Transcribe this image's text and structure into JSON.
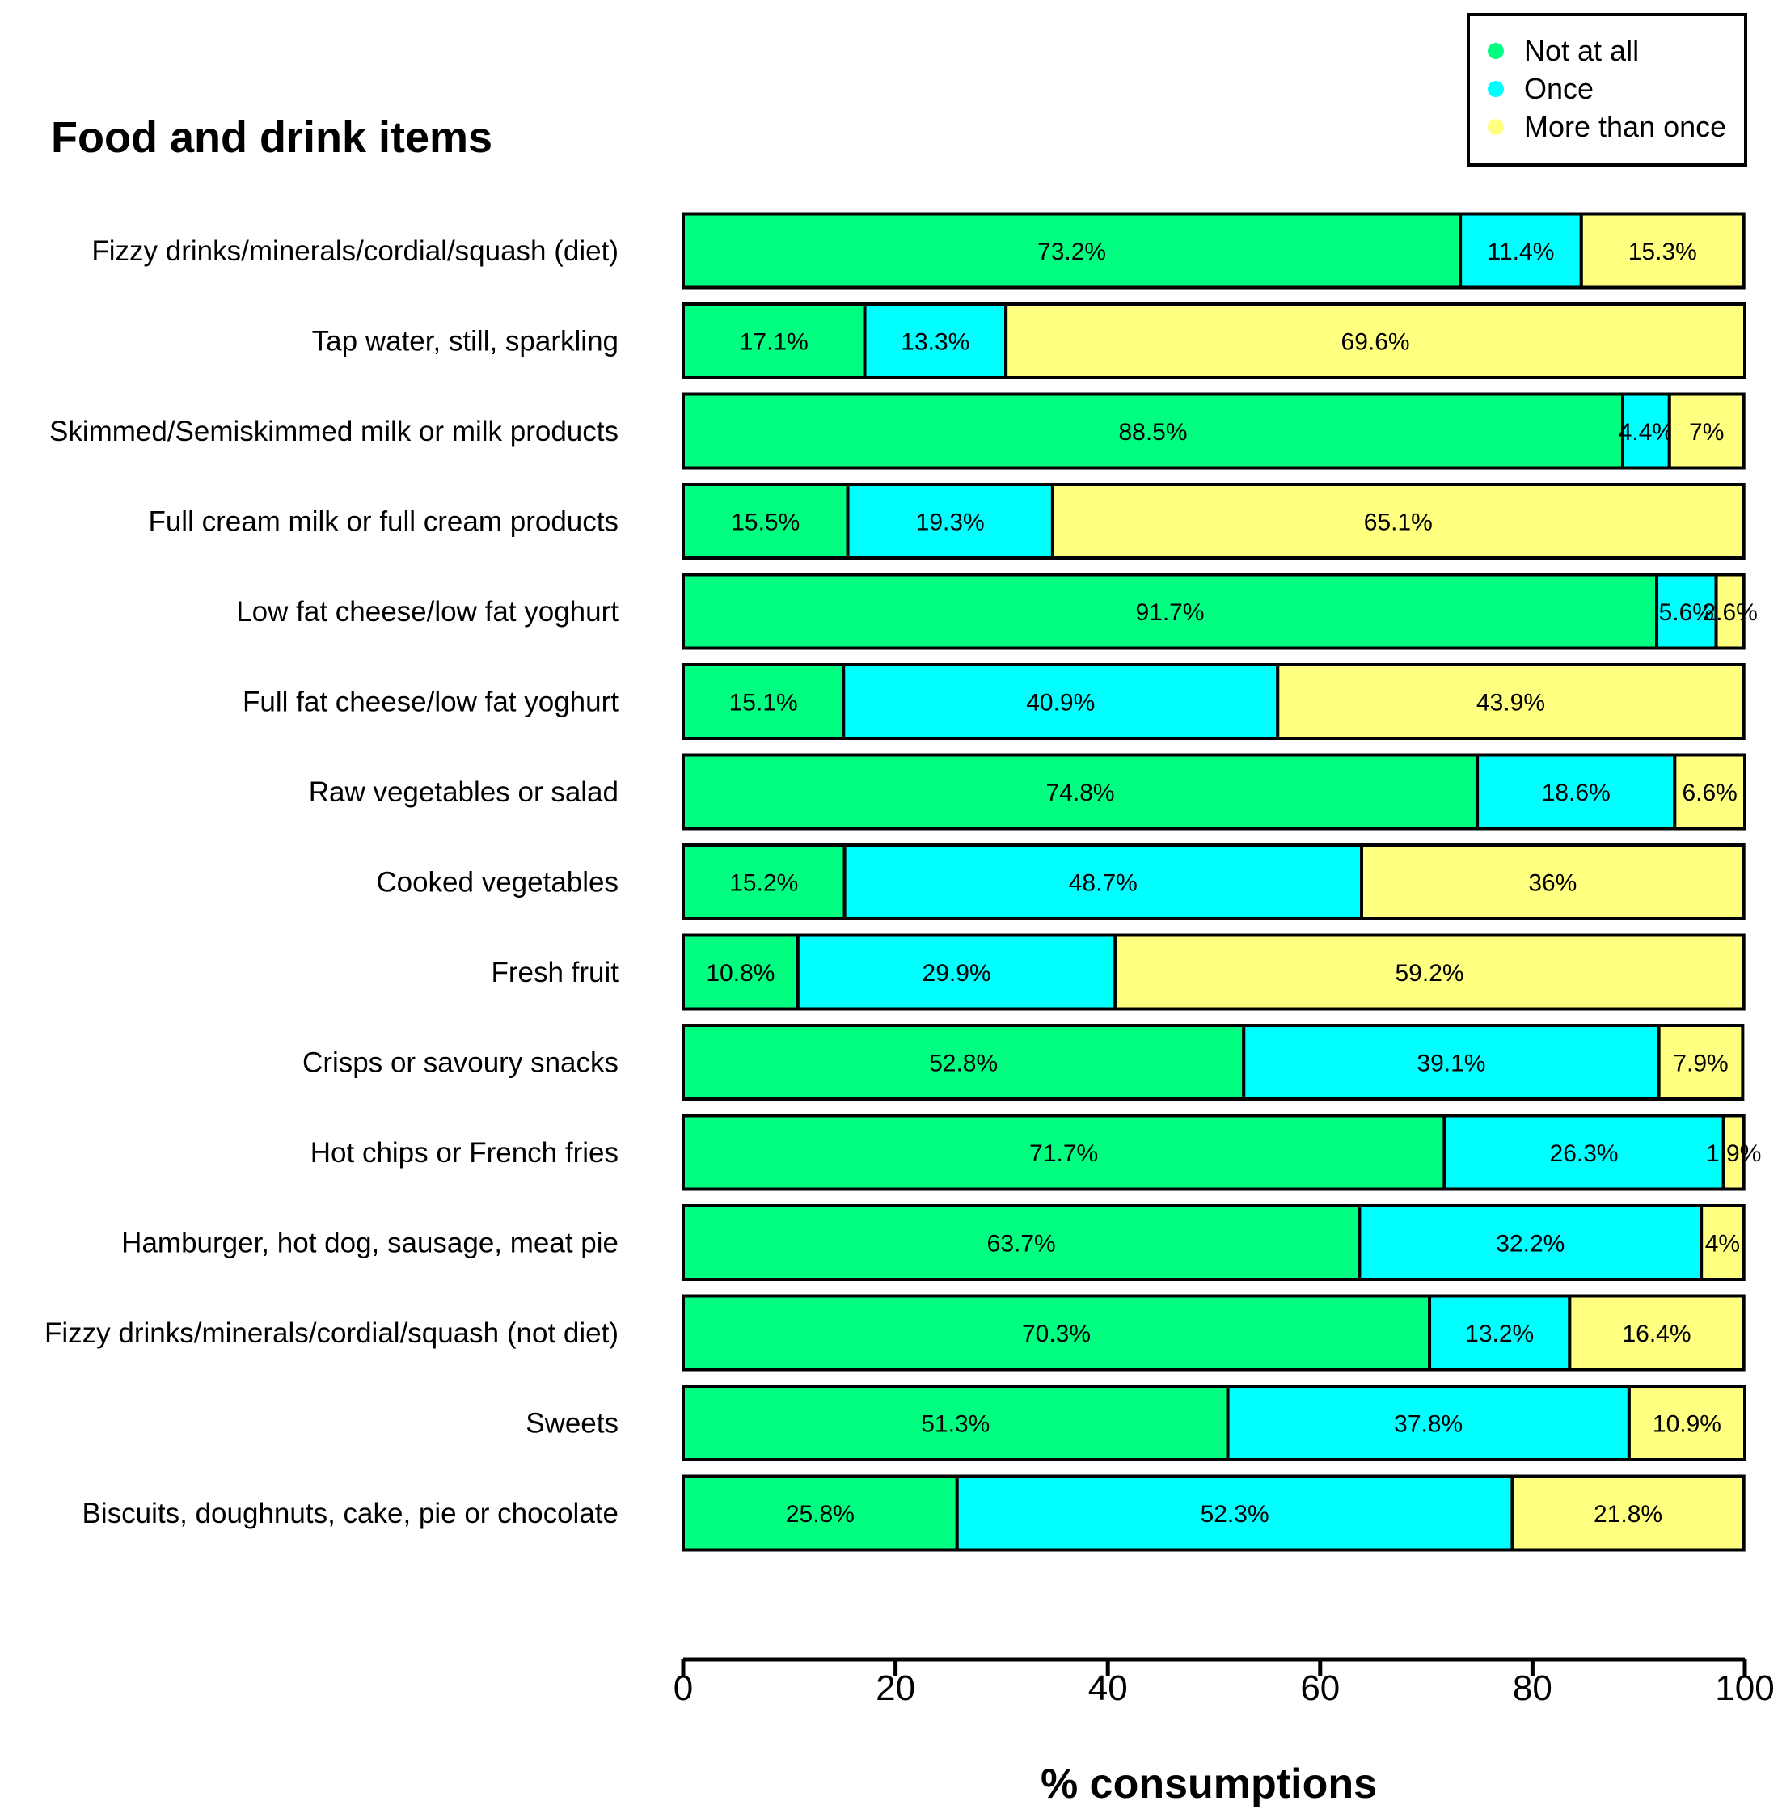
{
  "chart_data": {
    "type": "bar",
    "orientation": "horizontal",
    "stacked": true,
    "title": "Food and drink items",
    "xlabel": "% consumptions",
    "ylabel": "",
    "xlim": [
      0,
      100
    ],
    "xticks": [
      "0",
      "20",
      "40",
      "60",
      "80",
      "100"
    ],
    "legend_position": "top-right",
    "categories": [
      "Fizzy drinks/minerals/cordial/squash (diet)",
      "Tap water, still, sparkling",
      "Skimmed/Semiskimmed milk or milk products",
      "Full cream milk or full cream products",
      "Low fat cheese/low fat yoghurt",
      "Full fat cheese/low fat yoghurt",
      "Raw vegetables or salad",
      "Cooked vegetables",
      "Fresh fruit",
      "Crisps or savoury snacks",
      "Hot chips or French fries",
      "Hamburger, hot dog, sausage, meat pie",
      "Fizzy drinks/minerals/cordial/squash (not diet)",
      "Sweets",
      "Biscuits, doughnuts, cake, pie or chocolate"
    ],
    "series": [
      {
        "name": "Not at all",
        "color": "#00ff80",
        "values": [
          73.2,
          17.1,
          88.5,
          15.5,
          91.7,
          15.1,
          74.8,
          15.2,
          10.8,
          52.8,
          71.7,
          63.7,
          70.3,
          51.3,
          25.8
        ],
        "labels": [
          "73.2%",
          "17.1%",
          "88.5%",
          "15.5%",
          "91.7%",
          "15.1%",
          "74.8%",
          "15.2%",
          "10.8%",
          "52.8%",
          "71.7%",
          "63.7%",
          "70.3%",
          "51.3%",
          "25.8%"
        ]
      },
      {
        "name": "Once",
        "color": "#00ffff",
        "values": [
          11.4,
          13.3,
          4.4,
          19.3,
          5.6,
          40.9,
          18.6,
          48.7,
          29.9,
          39.1,
          26.3,
          32.2,
          13.2,
          37.8,
          52.3
        ],
        "labels": [
          "11.4%",
          "13.3%",
          "4.4%",
          "19.3%",
          "5.6%",
          "40.9%",
          "18.6%",
          "48.7%",
          "29.9%",
          "39.1%",
          "26.3%",
          "32.2%",
          "13.2%",
          "37.8%",
          "52.3%"
        ]
      },
      {
        "name": "More than once",
        "color": "#ffff80",
        "values": [
          15.3,
          69.6,
          7,
          65.1,
          2.6,
          43.9,
          6.6,
          36,
          59.2,
          7.9,
          1.9,
          4,
          16.4,
          10.9,
          21.8
        ],
        "labels": [
          "15.3%",
          "69.6%",
          "7%",
          "65.1%",
          "2.6%",
          "43.9%",
          "6.6%",
          "36%",
          "59.2%",
          "7.9%",
          "1.9%",
          "4%",
          "16.4%",
          "10.9%",
          "21.8%"
        ]
      }
    ]
  }
}
